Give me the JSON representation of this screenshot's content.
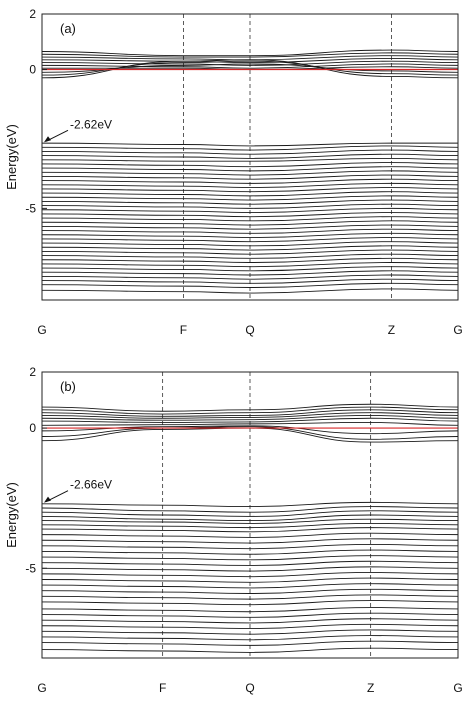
{
  "chart_data": [
    {
      "type": "line",
      "panel_label": "(a)",
      "ylabel": "Energy(eV)",
      "ylim": [
        -8.3,
        2
      ],
      "yticks": [
        2,
        0,
        -5
      ],
      "kpoints": [
        "G",
        "F",
        "Q",
        "Z",
        "G"
      ],
      "kpoint_positions": [
        0,
        0.34,
        0.5,
        0.84,
        1.0
      ],
      "fermi_level": 0,
      "fermi_color": "#d62728",
      "band_color": "#1a1a1a",
      "annotation": {
        "text": "-2.62eV",
        "energy": -2.62
      },
      "series": [
        {
          "values": [
            0.65,
            0.5,
            0.5,
            0.7,
            0.65
          ]
        },
        {
          "values": [
            0.55,
            0.45,
            0.45,
            0.6,
            0.55
          ]
        },
        {
          "values": [
            0.45,
            0.38,
            0.35,
            0.5,
            0.45
          ]
        },
        {
          "values": [
            0.35,
            0.3,
            0.25,
            0.4,
            0.35
          ]
        },
        {
          "values": [
            0.25,
            0.2,
            0.15,
            0.3,
            0.25
          ]
        },
        {
          "values": [
            0.15,
            0.1,
            0.05,
            0.2,
            0.15
          ]
        },
        {
          "values": [
            0.05,
            0.05,
            0.0,
            0.1,
            0.05
          ]
        },
        {
          "values": [
            -0.1,
            0.15,
            0.2,
            -0.05,
            -0.1
          ]
        },
        {
          "values": [
            -0.2,
            0.25,
            0.3,
            -0.15,
            -0.2
          ]
        },
        {
          "values": [
            -0.3,
            0.3,
            0.35,
            -0.25,
            -0.3
          ]
        },
        {
          "values": [
            -2.65,
            -2.7,
            -2.75,
            -2.65,
            -2.65
          ]
        },
        {
          "values": [
            -2.8,
            -2.85,
            -2.9,
            -2.75,
            -2.8
          ]
        },
        {
          "values": [
            -2.95,
            -3.0,
            -3.05,
            -2.9,
            -2.95
          ]
        },
        {
          "values": [
            -3.1,
            -3.15,
            -3.2,
            -3.05,
            -3.1
          ]
        },
        {
          "values": [
            -3.25,
            -3.3,
            -3.3,
            -3.2,
            -3.25
          ]
        },
        {
          "values": [
            -3.4,
            -3.45,
            -3.5,
            -3.35,
            -3.4
          ]
        },
        {
          "values": [
            -3.55,
            -3.6,
            -3.65,
            -3.5,
            -3.55
          ]
        },
        {
          "values": [
            -3.7,
            -3.75,
            -3.8,
            -3.65,
            -3.7
          ]
        },
        {
          "values": [
            -3.85,
            -3.9,
            -3.95,
            -3.8,
            -3.85
          ]
        },
        {
          "values": [
            -4.0,
            -4.05,
            -4.1,
            -3.95,
            -4.0
          ]
        },
        {
          "values": [
            -4.15,
            -4.2,
            -4.25,
            -4.1,
            -4.15
          ]
        },
        {
          "values": [
            -4.3,
            -4.35,
            -4.4,
            -4.25,
            -4.3
          ]
        },
        {
          "values": [
            -4.45,
            -4.5,
            -4.55,
            -4.4,
            -4.45
          ]
        },
        {
          "values": [
            -4.6,
            -4.65,
            -4.7,
            -4.55,
            -4.6
          ]
        },
        {
          "values": [
            -4.75,
            -4.8,
            -4.85,
            -4.7,
            -4.75
          ]
        },
        {
          "values": [
            -4.9,
            -4.95,
            -5.0,
            -4.85,
            -4.9
          ]
        },
        {
          "values": [
            -5.05,
            -5.1,
            -5.15,
            -5.0,
            -5.05
          ]
        },
        {
          "values": [
            -5.2,
            -5.25,
            -5.3,
            -5.15,
            -5.2
          ]
        },
        {
          "values": [
            -5.35,
            -5.4,
            -5.45,
            -5.3,
            -5.35
          ]
        },
        {
          "values": [
            -5.5,
            -5.55,
            -5.6,
            -5.45,
            -5.5
          ]
        },
        {
          "values": [
            -5.65,
            -5.7,
            -5.75,
            -5.6,
            -5.65
          ]
        },
        {
          "values": [
            -5.8,
            -5.85,
            -5.9,
            -5.75,
            -5.8
          ]
        },
        {
          "values": [
            -5.95,
            -6.0,
            -6.05,
            -5.9,
            -5.95
          ]
        },
        {
          "values": [
            -6.1,
            -6.15,
            -6.2,
            -6.05,
            -6.1
          ]
        },
        {
          "values": [
            -6.25,
            -6.3,
            -6.35,
            -6.2,
            -6.25
          ]
        },
        {
          "values": [
            -6.4,
            -6.45,
            -6.5,
            -6.35,
            -6.4
          ]
        },
        {
          "values": [
            -6.55,
            -6.6,
            -6.65,
            -6.5,
            -6.55
          ]
        },
        {
          "values": [
            -6.7,
            -6.75,
            -6.8,
            -6.65,
            -6.7
          ]
        },
        {
          "values": [
            -6.85,
            -6.9,
            -6.95,
            -6.8,
            -6.85
          ]
        },
        {
          "values": [
            -7.0,
            -7.05,
            -7.1,
            -6.95,
            -7.0
          ]
        },
        {
          "values": [
            -7.15,
            -7.2,
            -7.25,
            -7.1,
            -7.15
          ]
        },
        {
          "values": [
            -7.3,
            -7.35,
            -7.4,
            -7.25,
            -7.3
          ]
        },
        {
          "values": [
            -7.45,
            -7.5,
            -7.55,
            -7.4,
            -7.45
          ]
        },
        {
          "values": [
            -7.6,
            -7.65,
            -7.7,
            -7.55,
            -7.6
          ]
        },
        {
          "values": [
            -7.75,
            -7.8,
            -7.85,
            -7.7,
            -7.75
          ]
        },
        {
          "values": [
            -7.95,
            -8.0,
            -8.05,
            -7.9,
            -7.95
          ]
        }
      ]
    },
    {
      "type": "line",
      "panel_label": "(b)",
      "ylabel": "Energy(eV)",
      "ylim": [
        -8.2,
        2
      ],
      "yticks": [
        2,
        0,
        -5
      ],
      "kpoints": [
        "G",
        "F",
        "Q",
        "Z",
        "G"
      ],
      "kpoint_positions": [
        0,
        0.29,
        0.5,
        0.79,
        1.0
      ],
      "fermi_level": 0,
      "fermi_color": "#d62728",
      "band_color": "#1a1a1a",
      "annotation": {
        "text": "-2.66eV",
        "energy": -2.66
      },
      "series": [
        {
          "values": [
            0.75,
            0.6,
            0.65,
            0.85,
            0.75
          ]
        },
        {
          "values": [
            0.65,
            0.5,
            0.55,
            0.75,
            0.65
          ]
        },
        {
          "values": [
            0.55,
            0.42,
            0.45,
            0.65,
            0.55
          ]
        },
        {
          "values": [
            0.45,
            0.35,
            0.38,
            0.55,
            0.45
          ]
        },
        {
          "values": [
            0.35,
            0.28,
            0.3,
            0.45,
            0.35
          ]
        },
        {
          "values": [
            0.25,
            0.2,
            0.22,
            0.35,
            0.25
          ]
        },
        {
          "values": [
            0.1,
            0.12,
            0.15,
            0.2,
            0.1
          ]
        },
        {
          "values": [
            -0.1,
            0.05,
            0.08,
            -0.2,
            -0.1
          ]
        },
        {
          "values": [
            -0.3,
            0.0,
            0.05,
            -0.4,
            -0.3
          ]
        },
        {
          "values": [
            -0.45,
            -0.05,
            0.0,
            -0.5,
            -0.45
          ]
        },
        {
          "values": [
            -2.7,
            -2.75,
            -2.8,
            -2.65,
            -2.7
          ]
        },
        {
          "values": [
            -2.85,
            -2.95,
            -3.0,
            -2.8,
            -2.85
          ]
        },
        {
          "values": [
            -3.0,
            -3.1,
            -3.15,
            -2.95,
            -3.0
          ]
        },
        {
          "values": [
            -3.15,
            -3.25,
            -3.3,
            -3.1,
            -3.15
          ]
        },
        {
          "values": [
            -3.3,
            -3.35,
            -3.4,
            -3.25,
            -3.3
          ]
        },
        {
          "values": [
            -3.45,
            -3.5,
            -3.55,
            -3.4,
            -3.45
          ]
        },
        {
          "values": [
            -3.6,
            -3.65,
            -3.7,
            -3.55,
            -3.6
          ]
        },
        {
          "values": [
            -3.8,
            -3.85,
            -3.9,
            -3.75,
            -3.8
          ]
        },
        {
          "values": [
            -4.0,
            -4.05,
            -4.1,
            -3.95,
            -4.0
          ]
        },
        {
          "values": [
            -4.2,
            -4.25,
            -4.3,
            -4.15,
            -4.2
          ]
        },
        {
          "values": [
            -4.4,
            -4.45,
            -4.5,
            -4.35,
            -4.4
          ]
        },
        {
          "values": [
            -4.6,
            -4.65,
            -4.7,
            -4.55,
            -4.6
          ]
        },
        {
          "values": [
            -4.8,
            -4.85,
            -4.9,
            -4.75,
            -4.8
          ]
        },
        {
          "values": [
            -5.0,
            -5.05,
            -5.1,
            -4.95,
            -5.0
          ]
        },
        {
          "values": [
            -5.2,
            -5.25,
            -5.3,
            -5.15,
            -5.2
          ]
        },
        {
          "values": [
            -5.4,
            -5.45,
            -5.5,
            -5.35,
            -5.4
          ]
        },
        {
          "values": [
            -5.6,
            -5.65,
            -5.7,
            -5.55,
            -5.6
          ]
        },
        {
          "values": [
            -5.8,
            -5.85,
            -5.9,
            -5.75,
            -5.8
          ]
        },
        {
          "values": [
            -6.0,
            -6.05,
            -6.1,
            -5.95,
            -6.0
          ]
        },
        {
          "values": [
            -6.2,
            -6.25,
            -6.3,
            -6.15,
            -6.2
          ]
        },
        {
          "values": [
            -6.45,
            -6.5,
            -6.55,
            -6.4,
            -6.45
          ]
        },
        {
          "values": [
            -6.65,
            -6.7,
            -6.75,
            -6.6,
            -6.65
          ]
        },
        {
          "values": [
            -6.85,
            -6.9,
            -6.95,
            -6.8,
            -6.85
          ]
        },
        {
          "values": [
            -7.05,
            -7.1,
            -7.15,
            -7.0,
            -7.05
          ]
        },
        {
          "values": [
            -7.25,
            -7.3,
            -7.35,
            -7.2,
            -7.25
          ]
        },
        {
          "values": [
            -7.45,
            -7.5,
            -7.55,
            -7.4,
            -7.45
          ]
        },
        {
          "values": [
            -7.65,
            -7.7,
            -7.75,
            -7.6,
            -7.65
          ]
        },
        {
          "values": [
            -7.9,
            -7.95,
            -8.0,
            -7.85,
            -7.9
          ]
        }
      ]
    }
  ]
}
